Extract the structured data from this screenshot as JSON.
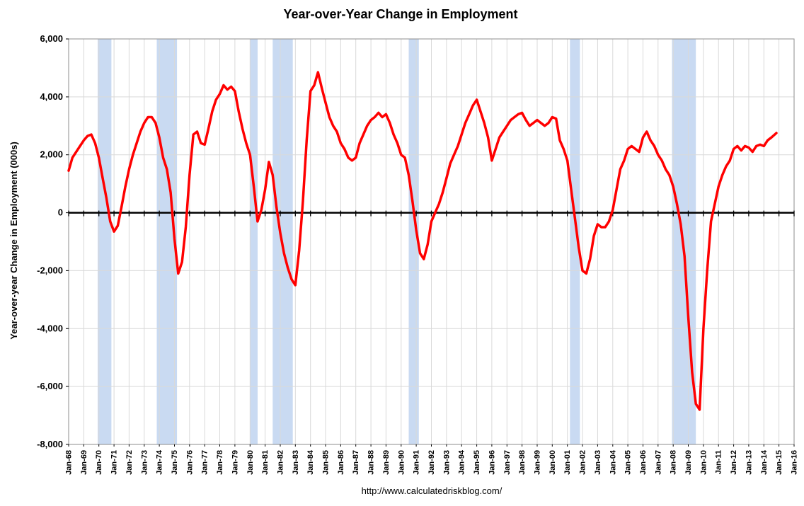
{
  "chart_data": {
    "type": "line",
    "title": "Year-over-Year Change in Employment",
    "ylabel": "Year-over-year Change in Employment (000s)",
    "xlabel": "",
    "footer": "http://www.calculatedriskblog.com/",
    "x_unit": "decimal_year",
    "x_range": [
      1968,
      2016
    ],
    "ylim": [
      -8000,
      6000
    ],
    "y_tick_step": 2000,
    "grid": true,
    "legend": "none",
    "colors": {
      "line": "#FF0000",
      "recession_band": "#C9DAF2",
      "gridline": "#D9D9D9",
      "border": "#8C8C8C",
      "zero_axis": "#000000"
    },
    "y_tick_labels": [
      "6,000",
      "4,000",
      "2,000",
      "0",
      "-2,000",
      "-4,000",
      "-6,000",
      "-8,000"
    ],
    "x_tick_labels": [
      "Jan-68",
      "Jan-69",
      "Jan-70",
      "Jan-71",
      "Jan-72",
      "Jan-73",
      "Jan-74",
      "Jan-75",
      "Jan-76",
      "Jan-77",
      "Jan-78",
      "Jan-79",
      "Jan-80",
      "Jan-81",
      "Jan-82",
      "Jan-83",
      "Jan-84",
      "Jan-85",
      "Jan-86",
      "Jan-87",
      "Jan-88",
      "Jan-89",
      "Jan-90",
      "Jan-91",
      "Jan-92",
      "Jan-93",
      "Jan-94",
      "Jan-95",
      "Jan-96",
      "Jan-97",
      "Jan-98",
      "Jan-99",
      "Jan-00",
      "Jan-01",
      "Jan-02",
      "Jan-03",
      "Jan-04",
      "Jan-05",
      "Jan-06",
      "Jan-07",
      "Jan-08",
      "Jan-09",
      "Jan-10",
      "Jan-11",
      "Jan-12",
      "Jan-13",
      "Jan-14",
      "Jan-15",
      "Jan-16"
    ],
    "recessions": [
      [
        1969.92,
        1970.83
      ],
      [
        1973.83,
        1975.17
      ],
      [
        1980.0,
        1980.5
      ],
      [
        1981.5,
        1982.83
      ],
      [
        1990.5,
        1991.17
      ],
      [
        2001.17,
        2001.83
      ],
      [
        2007.92,
        2009.5
      ]
    ],
    "points": [
      [
        1968.0,
        1450
      ],
      [
        1968.25,
        1900
      ],
      [
        1968.5,
        2100
      ],
      [
        1968.75,
        2300
      ],
      [
        1969.0,
        2500
      ],
      [
        1969.25,
        2650
      ],
      [
        1969.5,
        2700
      ],
      [
        1969.75,
        2400
      ],
      [
        1970.0,
        1900
      ],
      [
        1970.25,
        1200
      ],
      [
        1970.5,
        500
      ],
      [
        1970.75,
        -300
      ],
      [
        1971.0,
        -650
      ],
      [
        1971.25,
        -450
      ],
      [
        1971.5,
        200
      ],
      [
        1971.75,
        900
      ],
      [
        1972.0,
        1500
      ],
      [
        1972.25,
        2000
      ],
      [
        1972.5,
        2400
      ],
      [
        1972.75,
        2800
      ],
      [
        1973.0,
        3100
      ],
      [
        1973.25,
        3300
      ],
      [
        1973.5,
        3300
      ],
      [
        1973.75,
        3100
      ],
      [
        1974.0,
        2600
      ],
      [
        1974.25,
        1900
      ],
      [
        1974.5,
        1500
      ],
      [
        1974.75,
        700
      ],
      [
        1975.0,
        -900
      ],
      [
        1975.25,
        -2100
      ],
      [
        1975.5,
        -1700
      ],
      [
        1975.75,
        -500
      ],
      [
        1976.0,
        1300
      ],
      [
        1976.25,
        2700
      ],
      [
        1976.5,
        2800
      ],
      [
        1976.75,
        2400
      ],
      [
        1977.0,
        2350
      ],
      [
        1977.25,
        2900
      ],
      [
        1977.5,
        3500
      ],
      [
        1977.75,
        3900
      ],
      [
        1978.0,
        4100
      ],
      [
        1978.25,
        4400
      ],
      [
        1978.5,
        4250
      ],
      [
        1978.75,
        4350
      ],
      [
        1979.0,
        4200
      ],
      [
        1979.25,
        3500
      ],
      [
        1979.5,
        2900
      ],
      [
        1979.75,
        2400
      ],
      [
        1980.0,
        2000
      ],
      [
        1980.25,
        900
      ],
      [
        1980.5,
        -300
      ],
      [
        1980.75,
        100
      ],
      [
        1981.0,
        800
      ],
      [
        1981.25,
        1750
      ],
      [
        1981.5,
        1300
      ],
      [
        1981.75,
        200
      ],
      [
        1982.0,
        -700
      ],
      [
        1982.25,
        -1400
      ],
      [
        1982.5,
        -1900
      ],
      [
        1982.75,
        -2300
      ],
      [
        1983.0,
        -2500
      ],
      [
        1983.25,
        -1300
      ],
      [
        1983.5,
        400
      ],
      [
        1983.75,
        2500
      ],
      [
        1984.0,
        4200
      ],
      [
        1984.25,
        4400
      ],
      [
        1984.5,
        4850
      ],
      [
        1984.75,
        4300
      ],
      [
        1985.0,
        3800
      ],
      [
        1985.25,
        3300
      ],
      [
        1985.5,
        3000
      ],
      [
        1985.75,
        2800
      ],
      [
        1986.0,
        2400
      ],
      [
        1986.25,
        2200
      ],
      [
        1986.5,
        1900
      ],
      [
        1986.75,
        1800
      ],
      [
        1987.0,
        1900
      ],
      [
        1987.25,
        2400
      ],
      [
        1987.5,
        2700
      ],
      [
        1987.75,
        3000
      ],
      [
        1988.0,
        3200
      ],
      [
        1988.25,
        3300
      ],
      [
        1988.5,
        3450
      ],
      [
        1988.75,
        3300
      ],
      [
        1989.0,
        3400
      ],
      [
        1989.25,
        3100
      ],
      [
        1989.5,
        2700
      ],
      [
        1989.75,
        2400
      ],
      [
        1990.0,
        2000
      ],
      [
        1990.25,
        1900
      ],
      [
        1990.5,
        1300
      ],
      [
        1990.75,
        400
      ],
      [
        1991.0,
        -600
      ],
      [
        1991.25,
        -1400
      ],
      [
        1991.5,
        -1600
      ],
      [
        1991.75,
        -1100
      ],
      [
        1992.0,
        -300
      ],
      [
        1992.25,
        0
      ],
      [
        1992.5,
        300
      ],
      [
        1992.75,
        700
      ],
      [
        1993.0,
        1200
      ],
      [
        1993.25,
        1700
      ],
      [
        1993.5,
        2000
      ],
      [
        1993.75,
        2300
      ],
      [
        1994.0,
        2700
      ],
      [
        1994.25,
        3100
      ],
      [
        1994.5,
        3400
      ],
      [
        1994.75,
        3700
      ],
      [
        1995.0,
        3900
      ],
      [
        1995.25,
        3500
      ],
      [
        1995.5,
        3100
      ],
      [
        1995.75,
        2600
      ],
      [
        1996.0,
        1800
      ],
      [
        1996.25,
        2200
      ],
      [
        1996.5,
        2600
      ],
      [
        1996.75,
        2800
      ],
      [
        1997.0,
        3000
      ],
      [
        1997.25,
        3200
      ],
      [
        1997.5,
        3300
      ],
      [
        1997.75,
        3400
      ],
      [
        1998.0,
        3450
      ],
      [
        1998.25,
        3200
      ],
      [
        1998.5,
        3000
      ],
      [
        1998.75,
        3100
      ],
      [
        1999.0,
        3200
      ],
      [
        1999.25,
        3100
      ],
      [
        1999.5,
        3000
      ],
      [
        1999.75,
        3100
      ],
      [
        2000.0,
        3300
      ],
      [
        2000.25,
        3250
      ],
      [
        2000.5,
        2500
      ],
      [
        2000.75,
        2200
      ],
      [
        2001.0,
        1800
      ],
      [
        2001.25,
        800
      ],
      [
        2001.5,
        -200
      ],
      [
        2001.75,
        -1200
      ],
      [
        2002.0,
        -2000
      ],
      [
        2002.25,
        -2100
      ],
      [
        2002.5,
        -1600
      ],
      [
        2002.75,
        -800
      ],
      [
        2003.0,
        -400
      ],
      [
        2003.25,
        -500
      ],
      [
        2003.5,
        -500
      ],
      [
        2003.75,
        -300
      ],
      [
        2004.0,
        100
      ],
      [
        2004.25,
        800
      ],
      [
        2004.5,
        1500
      ],
      [
        2004.75,
        1800
      ],
      [
        2005.0,
        2200
      ],
      [
        2005.25,
        2300
      ],
      [
        2005.5,
        2200
      ],
      [
        2005.75,
        2100
      ],
      [
        2006.0,
        2600
      ],
      [
        2006.25,
        2800
      ],
      [
        2006.5,
        2500
      ],
      [
        2006.75,
        2300
      ],
      [
        2007.0,
        2000
      ],
      [
        2007.25,
        1800
      ],
      [
        2007.5,
        1500
      ],
      [
        2007.75,
        1300
      ],
      [
        2008.0,
        900
      ],
      [
        2008.25,
        300
      ],
      [
        2008.5,
        -400
      ],
      [
        2008.75,
        -1500
      ],
      [
        2009.0,
        -3600
      ],
      [
        2009.25,
        -5500
      ],
      [
        2009.5,
        -6600
      ],
      [
        2009.75,
        -6800
      ],
      [
        2010.0,
        -4000
      ],
      [
        2010.25,
        -2000
      ],
      [
        2010.5,
        -300
      ],
      [
        2010.75,
        300
      ],
      [
        2011.0,
        900
      ],
      [
        2011.25,
        1300
      ],
      [
        2011.5,
        1600
      ],
      [
        2011.75,
        1800
      ],
      [
        2012.0,
        2200
      ],
      [
        2012.25,
        2300
      ],
      [
        2012.5,
        2150
      ],
      [
        2012.75,
        2300
      ],
      [
        2013.0,
        2250
      ],
      [
        2013.25,
        2100
      ],
      [
        2013.5,
        2300
      ],
      [
        2013.75,
        2350
      ],
      [
        2014.0,
        2300
      ],
      [
        2014.25,
        2500
      ],
      [
        2014.5,
        2600
      ],
      [
        2014.83,
        2750
      ]
    ]
  }
}
